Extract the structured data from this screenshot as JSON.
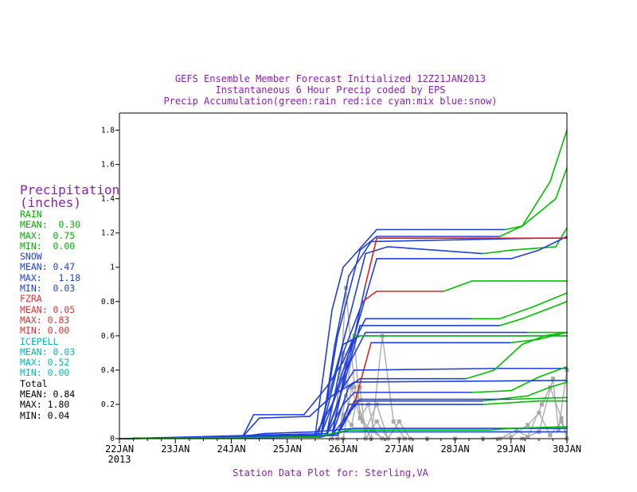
{
  "titles": {
    "line1": "GEFS Ensemble Member Forecast Initialized 12Z21JAN2013",
    "line2": "Instantaneous 6 Hour Precip coded by EPS",
    "line3": "Precip Accumulation(green:rain red:ice cyan:mix blue:snow)"
  },
  "footer": "Station Data Plot for: Sterling,VA",
  "colors": {
    "rain": "#00c000",
    "ice": "#e02020",
    "mix": "#00c0c0",
    "snow": "#1f3fe0",
    "instantaneous": "#a8a8a8",
    "title": "#8a1fb5",
    "axis": "#000000"
  },
  "sidebar": {
    "heading1": "Precipitation",
    "heading2": "(inches)",
    "groups": [
      {
        "label": "RAIN",
        "mean": "MEAN:  0.30",
        "max": "MAX:  0.75",
        "min": "MIN:  0.00"
      },
      {
        "label": "SNOW",
        "mean": "MEAN: 0.47",
        "max": "MAX:   1.18",
        "min": "MIN:  0.03"
      },
      {
        "label": "FZRA",
        "mean": "MEAN: 0.05",
        "max": "MAX: 0.83",
        "min": "MIN: 0.00"
      },
      {
        "label": "ICEPELL",
        "mean": "MEAN: 0.03",
        "max": "MAX: 0.52",
        "min": "MIN: 0.00"
      },
      {
        "label": "Total",
        "mean": "MEAN: 0.84",
        "max": "MAX: 1.80",
        "min": "MIN: 0.04"
      }
    ]
  },
  "chart_data": {
    "type": "line",
    "x_unit": "days since 00Z22JAN2013",
    "xlim": [
      0,
      8
    ],
    "ylim": [
      0,
      1.9
    ],
    "yticks": [
      0,
      0.2,
      0.4,
      0.6,
      0.8,
      1,
      1.2,
      1.4,
      1.6,
      1.8
    ],
    "ytick_labels": [
      "0",
      "0.2",
      "0.4",
      "0.6",
      "0.8",
      "1",
      "1.2",
      "1.4",
      "1.6",
      "1.8"
    ],
    "xtick_labels": [
      "22JAN\n2013",
      "23JAN",
      "24JAN",
      "25JAN",
      "26JAN",
      "27JAN",
      "28JAN",
      "29JAN",
      "30JAN"
    ],
    "grid": false,
    "accumulation_series": [
      {
        "pts": [
          [
            0,
            0
          ],
          [
            3.6,
            0.01
          ],
          [
            3.85,
            0.55
          ],
          [
            4.1,
            0.95
          ],
          [
            4.5,
            1.15
          ],
          [
            7.5,
            1.17
          ],
          [
            8,
            1.17
          ]
        ],
        "type": [
          [
            0,
            "snow"
          ]
        ]
      },
      {
        "pts": [
          [
            0,
            0
          ],
          [
            3.5,
            0.02
          ],
          [
            3.8,
            0.75
          ],
          [
            4.0,
            1.0
          ],
          [
            4.6,
            1.22
          ],
          [
            6.9,
            1.22
          ],
          [
            7.2,
            1.24
          ],
          [
            7.7,
            1.5
          ],
          [
            8,
            1.8
          ]
        ],
        "type": [
          [
            0,
            "snow"
          ],
          [
            6.9,
            "rain"
          ]
        ]
      },
      {
        "pts": [
          [
            0,
            0
          ],
          [
            3.6,
            0.01
          ],
          [
            3.9,
            0.6
          ],
          [
            4.3,
            1.1
          ],
          [
            4.6,
            1.18
          ],
          [
            6.8,
            1.18
          ],
          [
            7.2,
            1.24
          ],
          [
            7.8,
            1.4
          ],
          [
            8,
            1.58
          ]
        ],
        "type": [
          [
            0,
            "snow"
          ],
          [
            6.8,
            "rain"
          ]
        ]
      },
      {
        "pts": [
          [
            0,
            0
          ],
          [
            3.55,
            0.02
          ],
          [
            3.95,
            0.5
          ],
          [
            4.4,
            1.08
          ],
          [
            4.8,
            1.12
          ],
          [
            6.5,
            1.08
          ],
          [
            7.0,
            1.1
          ],
          [
            7.8,
            1.12
          ],
          [
            8,
            1.23
          ]
        ],
        "type": [
          [
            0,
            "snow"
          ],
          [
            6.5,
            "rain"
          ]
        ]
      },
      {
        "pts": [
          [
            0,
            0
          ],
          [
            3.5,
            0.02
          ],
          [
            3.8,
            0.2
          ],
          [
            4.2,
            0.6
          ],
          [
            4.6,
            1.05
          ],
          [
            7,
            1.05
          ],
          [
            7.5,
            1.1
          ],
          [
            8,
            1.18
          ]
        ],
        "type": [
          [
            0,
            "snow"
          ],
          [
            7,
            "snow"
          ]
        ]
      },
      {
        "pts": [
          [
            0,
            0
          ],
          [
            3.7,
            0.02
          ],
          [
            4.0,
            0.5
          ],
          [
            4.35,
            0.8
          ],
          [
            4.6,
            0.86
          ],
          [
            5.8,
            0.86
          ],
          [
            6.3,
            0.92
          ],
          [
            7,
            0.92
          ],
          [
            8,
            0.92
          ]
        ],
        "type": [
          [
            0,
            "snow"
          ],
          [
            4.2,
            "ice"
          ],
          [
            5.8,
            "rain"
          ]
        ]
      },
      {
        "pts": [
          [
            0,
            0
          ],
          [
            3.6,
            0.02
          ],
          [
            4.1,
            0.45
          ],
          [
            4.4,
            0.9
          ],
          [
            4.6,
            1.17
          ],
          [
            6.3,
            1.17
          ],
          [
            8,
            1.17
          ]
        ],
        "type": [
          [
            0,
            "snow"
          ],
          [
            4.3,
            "ice"
          ],
          [
            6.3,
            "ice"
          ]
        ]
      },
      {
        "pts": [
          [
            0,
            0
          ],
          [
            3.8,
            0.02
          ],
          [
            4.1,
            0.5
          ],
          [
            4.4,
            0.7
          ],
          [
            6.3,
            0.7
          ],
          [
            6.8,
            0.7
          ],
          [
            7.4,
            0.77
          ],
          [
            8,
            0.85
          ]
        ],
        "type": [
          [
            0,
            "snow"
          ],
          [
            6.3,
            "rain"
          ]
        ]
      },
      {
        "pts": [
          [
            0,
            0
          ],
          [
            3.7,
            0.02
          ],
          [
            4.0,
            0.3
          ],
          [
            4.3,
            0.66
          ],
          [
            6.0,
            0.66
          ],
          [
            6.8,
            0.66
          ],
          [
            7.2,
            0.7
          ],
          [
            8,
            0.8
          ]
        ],
        "type": [
          [
            0,
            "snow"
          ],
          [
            6.8,
            "rain"
          ]
        ]
      },
      {
        "pts": [
          [
            0,
            0
          ],
          [
            3.8,
            0.02
          ],
          [
            4.05,
            0.4
          ],
          [
            4.4,
            0.62
          ],
          [
            6.0,
            0.62
          ],
          [
            7.3,
            0.62
          ],
          [
            8,
            0.62
          ]
        ],
        "type": [
          [
            0,
            "snow"
          ],
          [
            7.2,
            "rain"
          ]
        ]
      },
      {
        "pts": [
          [
            0,
            0
          ],
          [
            3.6,
            0.02
          ],
          [
            4.0,
            0.55
          ],
          [
            4.3,
            0.6
          ],
          [
            7.0,
            0.6
          ],
          [
            8,
            0.6
          ]
        ],
        "type": [
          [
            0,
            "snow"
          ]
        ]
      },
      {
        "pts": [
          [
            0,
            0
          ],
          [
            3.9,
            0.02
          ],
          [
            4.2,
            0.2
          ],
          [
            4.5,
            0.56
          ],
          [
            7.0,
            0.56
          ],
          [
            7.5,
            0.58
          ],
          [
            8,
            0.62
          ]
        ],
        "type": [
          [
            0,
            "snow"
          ],
          [
            4.2,
            "ice"
          ],
          [
            4.6,
            "snow"
          ],
          [
            7.0,
            "rain"
          ]
        ]
      },
      {
        "pts": [
          [
            0,
            0
          ],
          [
            3.7,
            0.03
          ],
          [
            4.0,
            0.3
          ],
          [
            4.2,
            0.4
          ],
          [
            6.8,
            0.41
          ],
          [
            8,
            0.41
          ]
        ],
        "type": [
          [
            0,
            "snow"
          ]
        ]
      },
      {
        "pts": [
          [
            0,
            0
          ],
          [
            3.8,
            0.02
          ],
          [
            4.1,
            0.3
          ],
          [
            4.3,
            0.35
          ],
          [
            6.2,
            0.35
          ],
          [
            6.7,
            0.4
          ],
          [
            7.2,
            0.55
          ],
          [
            7.6,
            0.6
          ],
          [
            8,
            0.62
          ]
        ],
        "type": [
          [
            0,
            "snow"
          ],
          [
            6.2,
            "rain"
          ]
        ]
      },
      {
        "pts": [
          [
            0,
            0
          ],
          [
            3.7,
            0.02
          ],
          [
            4.0,
            0.2
          ],
          [
            4.2,
            0.27
          ],
          [
            6.3,
            0.27
          ],
          [
            7,
            0.28
          ],
          [
            7.5,
            0.36
          ],
          [
            8,
            0.42
          ]
        ],
        "type": [
          [
            0,
            "snow"
          ],
          [
            6.3,
            "rain"
          ]
        ]
      },
      {
        "pts": [
          [
            0,
            0
          ],
          [
            3.9,
            0.02
          ],
          [
            4.2,
            0.22
          ],
          [
            6.5,
            0.22
          ],
          [
            7.3,
            0.25
          ],
          [
            7.7,
            0.3
          ],
          [
            8,
            0.33
          ]
        ],
        "type": [
          [
            0,
            "snow"
          ],
          [
            6.5,
            "rain"
          ]
        ]
      },
      {
        "pts": [
          [
            0,
            0
          ],
          [
            3.9,
            0.02
          ],
          [
            4.1,
            0.2
          ],
          [
            6.5,
            0.2
          ],
          [
            7.5,
            0.22
          ],
          [
            8,
            0.22
          ]
        ],
        "type": [
          [
            0,
            "snow"
          ],
          [
            6.8,
            "rain"
          ]
        ]
      },
      {
        "pts": [
          [
            0,
            0
          ],
          [
            3.8,
            0.02
          ],
          [
            4.3,
            0.23
          ],
          [
            6.2,
            0.23
          ],
          [
            7,
            0.23
          ],
          [
            8,
            0.24
          ]
        ],
        "type": [
          [
            0,
            "snow"
          ],
          [
            6.2,
            "ice"
          ],
          [
            6.6,
            "snow"
          ],
          [
            7,
            "rain"
          ]
        ]
      },
      {
        "pts": [
          [
            0,
            0
          ],
          [
            2.2,
            0.01
          ],
          [
            2.4,
            0.14
          ],
          [
            3.3,
            0.14
          ],
          [
            3.7,
            0.3
          ],
          [
            4.0,
            0.45
          ],
          [
            4.2,
            0.6
          ],
          [
            8,
            0.6
          ]
        ],
        "type": [
          [
            0,
            "snow"
          ],
          [
            4.2,
            "rain"
          ]
        ]
      },
      {
        "pts": [
          [
            0,
            0
          ],
          [
            2.2,
            0.01
          ],
          [
            2.5,
            0.12
          ],
          [
            3.4,
            0.13
          ],
          [
            3.8,
            0.25
          ],
          [
            4.2,
            0.33
          ],
          [
            8,
            0.34
          ]
        ],
        "type": [
          [
            0,
            "snow"
          ]
        ]
      },
      {
        "pts": [
          [
            0,
            0
          ],
          [
            2.1,
            0.01
          ],
          [
            2.6,
            0.03
          ],
          [
            3.5,
            0.04
          ],
          [
            4.2,
            0.06
          ],
          [
            8,
            0.06
          ]
        ],
        "type": [
          [
            0,
            "snow"
          ]
        ]
      },
      {
        "pts": [
          [
            0,
            0
          ],
          [
            3.6,
            0.01
          ],
          [
            4.0,
            0.04
          ],
          [
            8,
            0.04
          ]
        ],
        "type": [
          [
            0,
            "snow"
          ]
        ]
      },
      {
        "pts": [
          [
            0,
            0
          ],
          [
            3.5,
            0.01
          ],
          [
            4.1,
            0.05
          ],
          [
            6.6,
            0.05
          ],
          [
            7,
            0.06
          ],
          [
            8,
            0.07
          ]
        ],
        "type": [
          [
            0,
            "rain"
          ]
        ]
      }
    ],
    "instantaneous_series": [
      [
        [
          3.8,
          0.0
        ],
        [
          3.95,
          0.35
        ],
        [
          4.05,
          0.88
        ],
        [
          4.2,
          0.3
        ],
        [
          4.35,
          0.1
        ],
        [
          4.5,
          0.0
        ],
        [
          4.7,
          0.6
        ],
        [
          4.9,
          0.1
        ],
        [
          5.1,
          0.0
        ]
      ],
      [
        [
          3.8,
          0.0
        ],
        [
          4.0,
          0.5
        ],
        [
          4.1,
          0.15
        ],
        [
          4.25,
          0.22
        ],
        [
          4.4,
          0.05
        ],
        [
          4.6,
          0.2
        ],
        [
          4.8,
          0.0
        ],
        [
          5.0,
          0.1
        ],
        [
          5.2,
          0.0
        ]
      ],
      [
        [
          3.9,
          0.0
        ],
        [
          4.05,
          0.25
        ],
        [
          4.2,
          0.6
        ],
        [
          4.3,
          0.12
        ],
        [
          4.45,
          0.2
        ],
        [
          4.55,
          0.05
        ],
        [
          4.7,
          0.0
        ]
      ],
      [
        [
          3.9,
          0.0
        ],
        [
          4.0,
          0.14
        ],
        [
          4.15,
          0.08
        ],
        [
          4.3,
          0.3
        ],
        [
          4.4,
          0.0
        ],
        [
          4.6,
          0.1
        ],
        [
          4.8,
          0.0
        ]
      ],
      [
        [
          4.0,
          0.0
        ],
        [
          4.15,
          0.3
        ],
        [
          4.3,
          0.12
        ],
        [
          4.5,
          0.05
        ],
        [
          4.7,
          0.0
        ]
      ],
      [
        [
          5.0,
          0.0
        ],
        [
          5.5,
          0.0
        ],
        [
          6.0,
          0.0
        ],
        [
          6.5,
          0.0
        ],
        [
          7.0,
          0.01
        ],
        [
          7.3,
          0.08
        ],
        [
          7.5,
          0.15
        ],
        [
          7.7,
          0.02
        ],
        [
          7.9,
          0.1
        ],
        [
          8,
          0.0
        ]
      ],
      [
        [
          6.8,
          0.0
        ],
        [
          7.1,
          0.05
        ],
        [
          7.3,
          0.01
        ],
        [
          7.55,
          0.2
        ],
        [
          7.7,
          0.3
        ],
        [
          7.9,
          0.12
        ],
        [
          8,
          0.0
        ]
      ],
      [
        [
          7.2,
          0.0
        ],
        [
          7.5,
          0.04
        ],
        [
          7.75,
          0.35
        ],
        [
          7.85,
          0.05
        ],
        [
          8,
          0.4
        ]
      ]
    ]
  }
}
